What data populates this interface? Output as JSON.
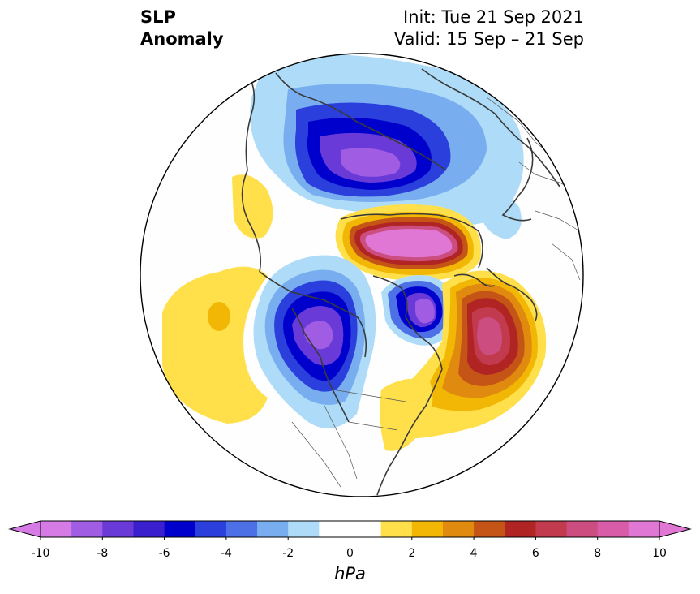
{
  "title": {
    "left_line1": "SLP",
    "left_line2": "Anomaly",
    "right_line1": "Init: Tue 21 Sep 2021",
    "right_line2": "Valid: 15 Sep – 21 Sep"
  },
  "colorbar": {
    "unit": "hPa",
    "tick_labels": [
      "-10",
      "-8",
      "-6",
      "-4",
      "-2",
      "0",
      "2",
      "4",
      "6",
      "8",
      "10"
    ],
    "colors": [
      "#d67be6",
      "#a05ce3",
      "#6a3ad8",
      "#3a1fcf",
      "#0000cc",
      "#2a3fdc",
      "#4e70e6",
      "#78aef0",
      "#aedcf8",
      "#ffffff",
      "#ffffff",
      "#ffe04a",
      "#f2b705",
      "#e08a0f",
      "#c45516",
      "#b12424",
      "#c23a4e",
      "#cc4d80",
      "#d95ca8",
      "#e077d4"
    ],
    "extend_min_color": "#d67be6",
    "extend_max_color": "#e077d4"
  },
  "map": {
    "projection": "north-polar-stereographic",
    "anomaly_features": [
      {
        "name": "Low over Siberia / Arctic (Eurasia)",
        "min_hPa": -10
      },
      {
        "name": "High over Arctic Ocean / Greenland-Canada",
        "max_hPa": 10
      },
      {
        "name": "Low over Alaska / NE Pacific",
        "min_hPa": -10
      },
      {
        "name": "Low over Hudson Bay",
        "min_hPa": -10
      },
      {
        "name": "High over North Atlantic",
        "max_hPa": 8
      },
      {
        "name": "Weak high over North Pacific",
        "max_hPa": 3
      }
    ]
  }
}
